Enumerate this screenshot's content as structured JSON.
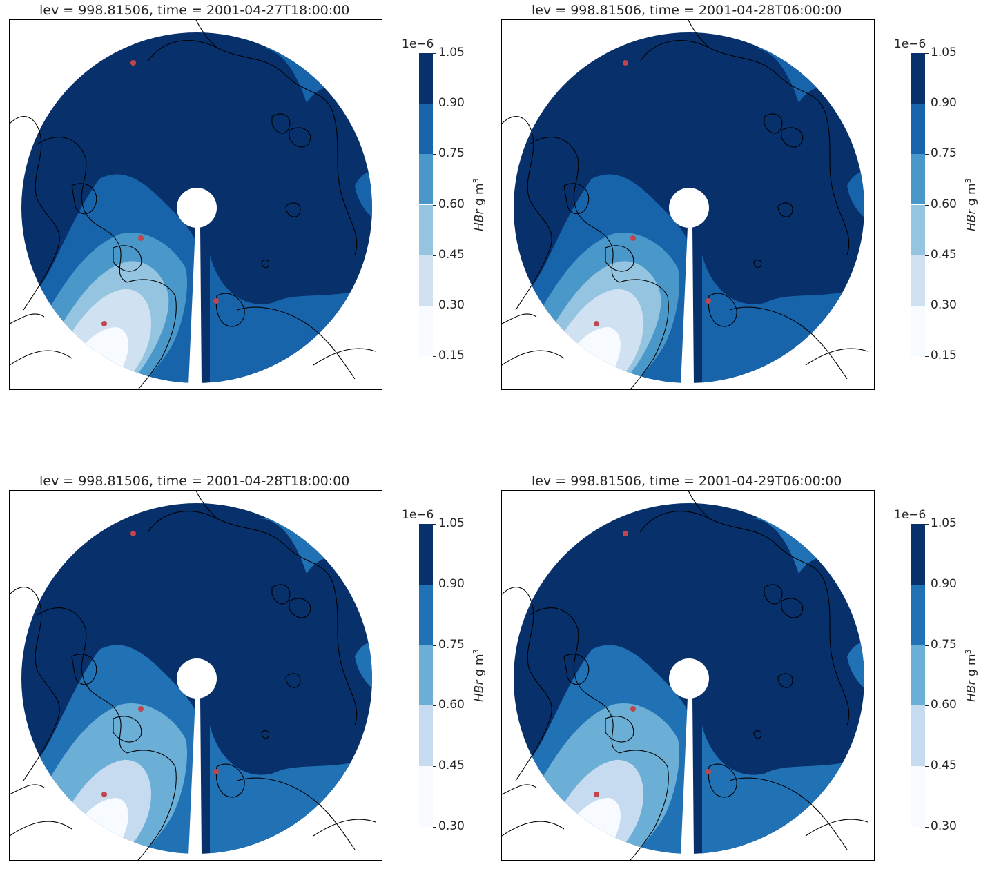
{
  "figure": {
    "panels": [
      {
        "title": "lev = 998.81506, time = 2001-04-27T18:00:00",
        "colorbar": {
          "exponent": "1e−6",
          "label_var": "HBr",
          "label_unit": " g m",
          "label_sup": "3",
          "ticks": [
            "0.15",
            "0.30",
            "0.45",
            "0.60",
            "0.75",
            "0.90",
            "1.05"
          ],
          "colors": [
            "#f7fbff",
            "#d0e1f2",
            "#94c4df",
            "#4a98c9",
            "#1764ab",
            "#08306b"
          ]
        },
        "fields": {
          "inner1": "#f7fbff",
          "inner2": "#d0e1f2",
          "inner3": "#94c4df",
          "inner4": "#4a98c9",
          "mid": "#1764ab",
          "base": "#08306b",
          "southblob": "#1764ab"
        },
        "stations": [
          "station-north",
          "station-center",
          "station-east",
          "station-greenland"
        ]
      },
      {
        "title": "lev = 998.81506, time = 2001-04-28T06:00:00",
        "colorbar": {
          "exponent": "1e−6",
          "label_var": "HBr",
          "label_unit": " g m",
          "label_sup": "3",
          "ticks": [
            "0.15",
            "0.30",
            "0.45",
            "0.60",
            "0.75",
            "0.90",
            "1.05"
          ],
          "colors": [
            "#f7fbff",
            "#d0e1f2",
            "#94c4df",
            "#4a98c9",
            "#1764ab",
            "#08306b"
          ]
        },
        "fields": {
          "inner1": "#f7fbff",
          "inner2": "#d0e1f2",
          "inner3": "#94c4df",
          "inner4": "#4a98c9",
          "mid": "#1764ab",
          "base": "#08306b",
          "southblob": "#1764ab"
        },
        "stations": [
          "station-north",
          "station-center",
          "station-east",
          "station-greenland"
        ]
      },
      {
        "title": "lev = 998.81506, time = 2001-04-28T18:00:00",
        "colorbar": {
          "exponent": "1e−6",
          "label_var": "HBr",
          "label_unit": " g m",
          "label_sup": "3",
          "ticks": [
            "0.30",
            "0.45",
            "0.60",
            "0.75",
            "0.90",
            "1.05"
          ],
          "colors": [
            "#f7fbff",
            "#c6dbef",
            "#6baed6",
            "#2171b5",
            "#08306b"
          ]
        },
        "fields": {
          "inner1": "#f7fbff",
          "inner2": "#c6dbef",
          "inner3": "#6baed6",
          "inner4": "#6baed6",
          "mid": "#2171b5",
          "base": "#08306b",
          "southblob": "#2171b5"
        },
        "stations": [
          "station-north",
          "station-center",
          "station-east",
          "station-greenland"
        ]
      },
      {
        "title": "lev = 998.81506, time = 2001-04-29T06:00:00",
        "colorbar": {
          "exponent": "1e−6",
          "label_var": "HBr",
          "label_unit": " g m",
          "label_sup": "3",
          "ticks": [
            "0.30",
            "0.45",
            "0.60",
            "0.75",
            "0.90",
            "1.05"
          ],
          "colors": [
            "#f7fbff",
            "#c6dbef",
            "#6baed6",
            "#2171b5",
            "#08306b"
          ]
        },
        "fields": {
          "inner1": "#f7fbff",
          "inner2": "#c6dbef",
          "inner3": "#6baed6",
          "inner4": "#6baed6",
          "mid": "#2171b5",
          "base": "#08306b",
          "southblob": "#2171b5"
        },
        "stations": [
          "station-north",
          "station-center",
          "station-east",
          "station-greenland"
        ]
      }
    ],
    "station_color": "#c1454d",
    "coastline_color": "#000000"
  }
}
